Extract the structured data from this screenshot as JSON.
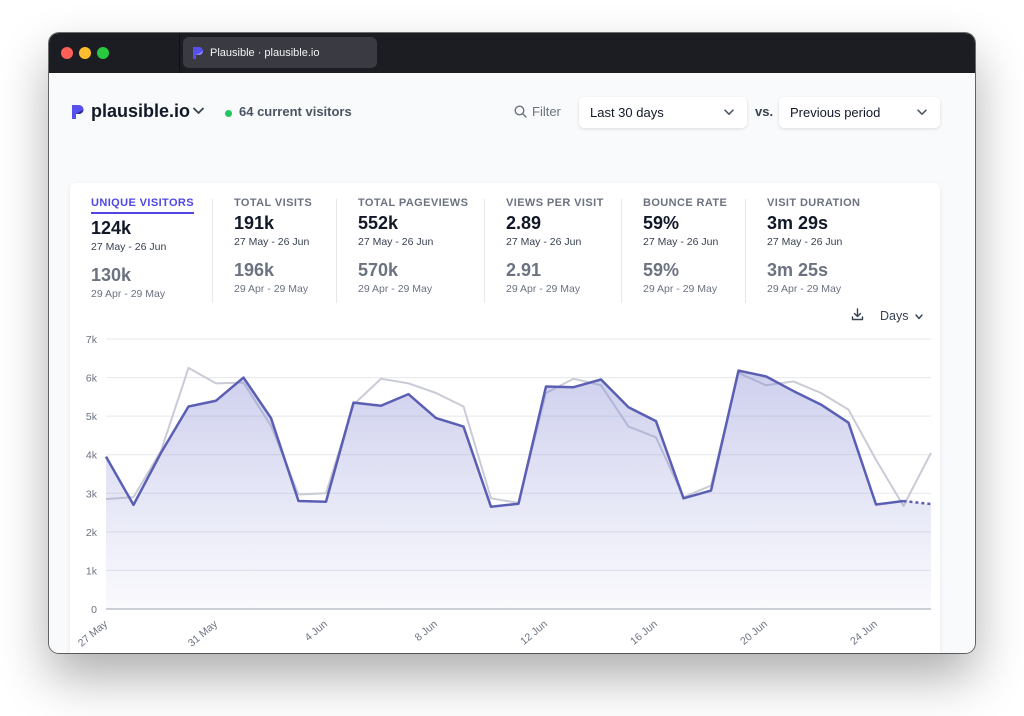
{
  "window": {
    "tab_title": "Plausible · plausible.io"
  },
  "header": {
    "site_name": "plausible.io",
    "current_visitors": "64 current visitors",
    "filter_label": "Filter",
    "period_label": "Last 30 days",
    "vs_label": "vs.",
    "compare_label": "Previous period"
  },
  "metrics": [
    {
      "label": "UNIQUE VISITORS",
      "value": "124k",
      "range": "27 May - 26 Jun",
      "prev_value": "130k",
      "prev_range": "29 Apr - 29 May"
    },
    {
      "label": "TOTAL VISITS",
      "value": "191k",
      "range": "27 May - 26 Jun",
      "prev_value": "196k",
      "prev_range": "29 Apr - 29 May"
    },
    {
      "label": "TOTAL PAGEVIEWS",
      "value": "552k",
      "range": "27 May - 26 Jun",
      "prev_value": "570k",
      "prev_range": "29 Apr - 29 May"
    },
    {
      "label": "VIEWS PER VISIT",
      "value": "2.89",
      "range": "27 May - 26 Jun",
      "prev_value": "2.91",
      "prev_range": "29 Apr - 29 May"
    },
    {
      "label": "BOUNCE RATE",
      "value": "59%",
      "range": "27 May - 26 Jun",
      "prev_value": "59%",
      "prev_range": "29 Apr - 29 May"
    },
    {
      "label": "VISIT DURATION",
      "value": "3m 29s",
      "range": "27 May - 26 Jun",
      "prev_value": "3m 25s",
      "prev_range": "29 Apr - 29 May"
    }
  ],
  "chart_controls": {
    "interval_label": "Days",
    "download_icon": "download-icon"
  },
  "colors": {
    "current_line": "#5b5fb4",
    "previous_line": "#c9cbd6",
    "accent": "#4f46e5",
    "live_dot": "#22c55e"
  },
  "chart_data": {
    "type": "line",
    "x": [
      "27 May",
      "28 May",
      "29 May",
      "30 May",
      "31 May",
      "1 Jun",
      "2 Jun",
      "3 Jun",
      "4 Jun",
      "5 Jun",
      "6 Jun",
      "7 Jun",
      "8 Jun",
      "9 Jun",
      "10 Jun",
      "11 Jun",
      "12 Jun",
      "13 Jun",
      "14 Jun",
      "15 Jun",
      "16 Jun",
      "17 Jun",
      "18 Jun",
      "19 Jun",
      "20 Jun",
      "21 Jun",
      "22 Jun",
      "23 Jun",
      "24 Jun",
      "25 Jun",
      "26 Jun"
    ],
    "x_tick_labels": [
      "27 May",
      "31 May",
      "4 Jun",
      "8 Jun",
      "12 Jun",
      "16 Jun",
      "20 Jun",
      "24 Jun"
    ],
    "y_tick_labels": [
      "0",
      "1k",
      "2k",
      "3k",
      "4k",
      "5k",
      "6k",
      "7k"
    ],
    "ylim": [
      0,
      7000
    ],
    "grid": true,
    "series": [
      {
        "values": [
          3950,
          2700,
          4050,
          5250,
          5400,
          6000,
          4950,
          2800,
          2780,
          5350,
          5270,
          5570,
          4950,
          4730,
          2650,
          2730,
          5770,
          5750,
          5950,
          5230,
          4870,
          2870,
          3070,
          6180,
          6030,
          5650,
          5300,
          4830,
          2710,
          2800,
          2720
        ],
        "dashed_last_segment": true
      },
      {
        "values": [
          2850,
          2900,
          4100,
          6250,
          5850,
          5870,
          4750,
          2970,
          3000,
          5300,
          5970,
          5850,
          5600,
          5250,
          2870,
          2750,
          5600,
          5970,
          5800,
          4730,
          4450,
          2900,
          3200,
          6120,
          5800,
          5900,
          5600,
          5170,
          3870,
          2670,
          4050
        ]
      }
    ]
  }
}
